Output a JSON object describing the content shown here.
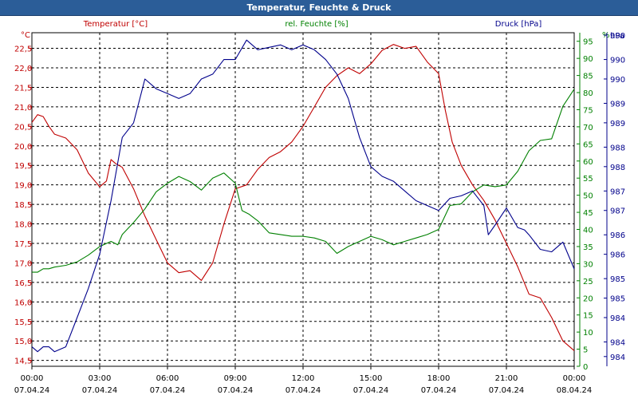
{
  "window": {
    "title": "Temperatur, Feuchte & Druck"
  },
  "chart_data": {
    "type": "line",
    "title": "Temperatur, Feuchte & Druck",
    "grid": true,
    "colors": {
      "temperature": "#c00000",
      "humidity": "#008000",
      "pressure": "#00008b",
      "grid": "#000000",
      "title_bar": "#2b5d98"
    },
    "x_ticks": [
      {
        "h": 0,
        "time": "00:00",
        "date": "07.04.24"
      },
      {
        "h": 3,
        "time": "03:00",
        "date": "07.04.24"
      },
      {
        "h": 6,
        "time": "06:00",
        "date": "07.04.24"
      },
      {
        "h": 9,
        "time": "09:00",
        "date": "07.04.24"
      },
      {
        "h": 12,
        "time": "12:00",
        "date": "07.04.24"
      },
      {
        "h": 15,
        "time": "15:00",
        "date": "07.04.24"
      },
      {
        "h": 18,
        "time": "18:00",
        "date": "07.04.24"
      },
      {
        "h": 21,
        "time": "21:00",
        "date": "07.04.24"
      },
      {
        "h": 24,
        "time": "00:00",
        "date": "08.04.24"
      }
    ],
    "axes": {
      "temperature": {
        "unit": "°C",
        "ylim": [
          14.35,
          22.9
        ],
        "ticks": [
          "14.5",
          "15.0",
          "15.5",
          "16.0",
          "16.5",
          "17.0",
          "17.5",
          "18.0",
          "18.5",
          "19.0",
          "19.5",
          "20.0",
          "20.5",
          "21.0",
          "21.5",
          "22.0",
          "22.5"
        ],
        "tick_labels": [
          "14,5",
          "15,0",
          "15,5",
          "16,0",
          "16,5",
          "17,0",
          "17,5",
          "18,0",
          "18,5",
          "19,0",
          "19,5",
          "20,0",
          "20,5",
          "21,0",
          "21,5",
          "22,0",
          "22,5"
        ]
      },
      "humidity": {
        "unit": "%",
        "ylim": [
          0,
          97.5
        ],
        "ticks": [
          "0",
          "5",
          "10",
          "15",
          "20",
          "25",
          "30",
          "35",
          "40",
          "45",
          "50",
          "55",
          "60",
          "65",
          "70",
          "75",
          "80",
          "85",
          "90",
          "95"
        ],
        "tick_labels": [
          "0",
          "5",
          "10",
          "15",
          "20",
          "25",
          "30",
          "35",
          "40",
          "45",
          "50",
          "55",
          "60",
          "65",
          "70",
          "75",
          "80",
          "85",
          "90",
          "95"
        ]
      },
      "pressure": {
        "unit": "hPa",
        "ylim": [
          983.8,
          990.65
        ],
        "ticks": [
          "984.0",
          "984.3",
          "984.8",
          "985.2",
          "985.6",
          "986.1",
          "986.5",
          "987.0",
          "987.4",
          "987.9",
          "988.3",
          "988.8",
          "989.2",
          "989.7",
          "990.1",
          "990.6"
        ],
        "tick_labels": [
          "984",
          "984",
          "984",
          "985",
          "985",
          "986",
          "986",
          "987",
          "987",
          "988",
          "988",
          "989",
          "989",
          "990",
          "990",
          "990"
        ]
      }
    },
    "series": [
      {
        "name": "Temperatur [°C]",
        "axis": "temperature",
        "x": [
          0,
          0.25,
          0.5,
          0.75,
          1,
          1.5,
          2,
          2.5,
          3,
          3.3,
          3.5,
          3.7,
          4,
          4.5,
          5,
          5.5,
          6,
          6.5,
          7,
          7.5,
          8,
          8.5,
          9,
          9.5,
          10,
          10.5,
          11,
          11.5,
          12,
          12.5,
          13,
          13.5,
          14,
          14.5,
          15,
          15.5,
          16,
          16.5,
          17,
          17.5,
          18,
          18.3,
          18.6,
          19,
          19.5,
          20,
          20.5,
          21,
          21.5,
          22,
          22.5,
          23,
          23.5,
          24
        ],
        "y": [
          20.6,
          20.8,
          20.75,
          20.5,
          20.3,
          20.2,
          19.9,
          19.3,
          18.95,
          19.1,
          19.65,
          19.55,
          19.45,
          18.9,
          18.2,
          17.6,
          17.0,
          16.75,
          16.8,
          16.55,
          17.0,
          18.0,
          18.9,
          19.0,
          19.4,
          19.7,
          19.85,
          20.1,
          20.5,
          21.0,
          21.5,
          21.8,
          22.0,
          21.85,
          22.1,
          22.45,
          22.6,
          22.5,
          22.55,
          22.15,
          21.85,
          20.9,
          20.1,
          19.5,
          19.0,
          18.6,
          18.1,
          17.5,
          16.9,
          16.2,
          16.1,
          15.6,
          15.0,
          14.75
        ]
      },
      {
        "name": "rel. Feuchte [%]",
        "axis": "humidity",
        "x": [
          0,
          0.25,
          0.5,
          0.75,
          1,
          1.5,
          2,
          2.5,
          3,
          3.5,
          3.8,
          4,
          4.5,
          5,
          5.5,
          6,
          6.5,
          7,
          7.5,
          8,
          8.5,
          9,
          9.3,
          9.6,
          10,
          10.5,
          11,
          11.5,
          12,
          12.5,
          13,
          13.5,
          14,
          14.5,
          15,
          15.5,
          16,
          16.5,
          17,
          17.5,
          18,
          18.5,
          19,
          19.5,
          20,
          20.5,
          21,
          21.5,
          22,
          22.5,
          23,
          23.5,
          24
        ],
        "y": [
          27.5,
          27.5,
          28.5,
          28.5,
          29,
          29.5,
          30.5,
          32.5,
          35,
          36.5,
          35.5,
          38.5,
          42,
          46,
          51,
          53.5,
          55.5,
          54,
          51.5,
          55,
          56.5,
          53.5,
          45.5,
          44.5,
          42.5,
          39,
          38.5,
          38,
          38,
          37.5,
          36.5,
          33,
          35,
          36.5,
          38,
          37,
          35.5,
          36.5,
          37.5,
          38.5,
          40,
          47,
          47.5,
          51,
          53,
          52.5,
          53,
          57,
          63,
          66,
          66.5,
          76,
          81
        ]
      },
      {
        "name": "Druck [hPa]",
        "axis": "pressure",
        "x": [
          0,
          0.25,
          0.5,
          0.75,
          1,
          1.5,
          2,
          2.5,
          3,
          3.5,
          4,
          4.5,
          5,
          5.5,
          6,
          6.5,
          7,
          7.5,
          8,
          8.5,
          9,
          9.5,
          10,
          10.5,
          11,
          11.5,
          12,
          12.5,
          13,
          13.5,
          14,
          14.5,
          15,
          15.5,
          16,
          16.5,
          17,
          17.5,
          18,
          18.5,
          19,
          19.5,
          20,
          20.2,
          20.5,
          21,
          21.5,
          21.8,
          22,
          22.5,
          23,
          23.5,
          24
        ],
        "y": [
          984.2,
          984.1,
          984.2,
          984.2,
          984.1,
          984.2,
          984.8,
          985.4,
          986.1,
          987.2,
          988.5,
          988.8,
          989.7,
          989.5,
          989.4,
          989.3,
          989.4,
          989.7,
          989.8,
          990.1,
          990.1,
          990.5,
          990.3,
          990.35,
          990.4,
          990.3,
          990.4,
          990.3,
          990.1,
          989.8,
          989.3,
          988.5,
          987.9,
          987.7,
          987.6,
          987.4,
          987.2,
          987.1,
          987.0,
          987.25,
          987.3,
          987.4,
          987.1,
          986.5,
          986.7,
          987.05,
          986.65,
          986.6,
          986.5,
          986.2,
          986.15,
          986.35,
          985.8
        ]
      }
    ],
    "legend": [
      {
        "name": "Temperatur [°C]",
        "position": "top-left"
      },
      {
        "name": "rel. Feuchte [%]",
        "position": "top-center"
      },
      {
        "name": "Druck [hPa]",
        "position": "top-right"
      }
    ]
  }
}
